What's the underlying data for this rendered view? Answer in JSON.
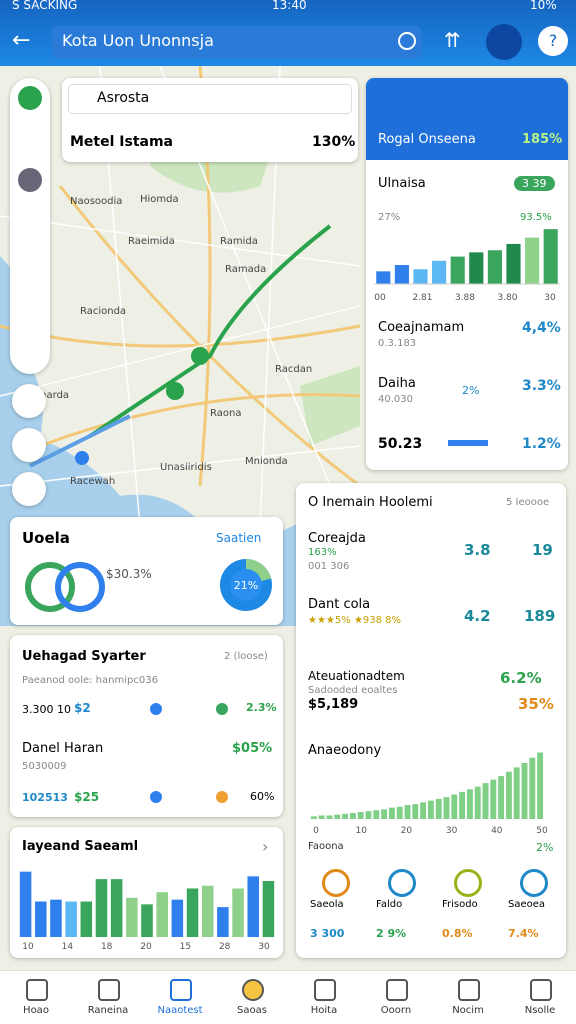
{
  "status": {
    "carrier": "S SACKING",
    "time": "13:40",
    "battery": "10%"
  },
  "header": {
    "search": "Kota Uon Unonnsja"
  },
  "map": {
    "labels": [
      "Naosoodia",
      "Hiomda",
      "Raeimida",
      "Ramida",
      "Ramada",
      "Racionda",
      "Racdan",
      "Dannarda",
      "Raona",
      "Mnionda",
      "Unasiiridis",
      "Racewah"
    ]
  },
  "search_card": {
    "query": "Asrosta",
    "title": "Metel Istama",
    "value": "130%"
  },
  "side_panel": {
    "title": "Rogal Onseena",
    "value": "185%",
    "chart_title": "Ulnaisa",
    "badge": "3 39",
    "low": "27%",
    "high": "93.5%",
    "bars": [
      12,
      18,
      14,
      22,
      26,
      30,
      32,
      38,
      44,
      52
    ],
    "bar_colors": [
      "#2f80ed",
      "#2f80ed",
      "#5cb8f5",
      "#5cb8f5",
      "#3aa55d",
      "#1f8a4c",
      "#3aa55d",
      "#1f8a4c",
      "#8fd18a",
      "#3aa55d"
    ],
    "x_labels": [
      "00",
      "2.81",
      "3.88",
      "3.80",
      "30"
    ],
    "rows": [
      {
        "name": "Coeajnamam",
        "sub": "0.3.183",
        "value": "4,4%"
      },
      {
        "name": "Daiha",
        "sub": "40.030",
        "mid": "2%",
        "value": "3.3%"
      },
      {
        "name": "50.23",
        "value": "1.2%"
      }
    ]
  },
  "card_ratio": {
    "title": "Uoela",
    "link": "Saatien",
    "value": "$30.3%",
    "pie": {
      "value": 21,
      "label": "21%"
    }
  },
  "card_list": {
    "title": "Uehagad Syarter",
    "tag": "2 (loose)",
    "row1": {
      "name": "Paeanod oole: hanmipc036",
      "id": "3.300 10",
      "amount": "$2",
      "value": "2.3%"
    },
    "row2": {
      "name": "Danel Haran",
      "value_top": "$05%",
      "sub": "5030009",
      "id": "102513",
      "amount": "$25",
      "value": "60%"
    }
  },
  "card_bars": {
    "title": "Iayeand Saeaml",
    "values": [
      70,
      38,
      40,
      38,
      38,
      62,
      62,
      42,
      35,
      48,
      40,
      52,
      55,
      32,
      52,
      65,
      60
    ],
    "colors": [
      "#2f80ed",
      "#2f80ed",
      "#2f80ed",
      "#5cb8f5",
      "#3aa55d",
      "#3aa55d",
      "#3aa55d",
      "#8fd18a",
      "#3aa55d",
      "#8fd18a",
      "#2f80ed",
      "#3aa55d",
      "#8fd18a",
      "#2f80ed",
      "#8fd18a",
      "#2f80ed",
      "#3aa55d"
    ],
    "x_labels": [
      "10",
      "14",
      "18",
      "20",
      "15",
      "28",
      "30"
    ]
  },
  "card_stats": {
    "title": "O Inemain Hoolemi",
    "tag": "5 Ieoooe",
    "row1": {
      "name": "Coreajda",
      "pct": "163%",
      "sub": "001 306",
      "a": "3.8",
      "b": "19"
    },
    "row2": {
      "name": "Dant cola",
      "sub": "★★★5% ★938 8%",
      "a": "4.2",
      "b": "189"
    },
    "row3": {
      "name": "Ateuationadtem",
      "sub": "Sadooded eoaltes",
      "amount": "$5,189",
      "a": "6.2%",
      "b": "35%"
    },
    "growth_title": "Anaeodony",
    "growth": [
      3,
      4,
      4,
      5,
      6,
      7,
      8,
      9,
      10,
      11,
      13,
      14,
      16,
      17,
      19,
      21,
      23,
      25,
      28,
      31,
      34,
      37,
      41,
      45,
      49,
      54,
      59,
      64,
      70,
      76
    ],
    "growth_ticks": [
      "0",
      "10",
      "20",
      "30",
      "40",
      "50"
    ],
    "footer": "Faoona",
    "footer_value": "2%",
    "icons": [
      {
        "name": "Saeola",
        "value": "3 300"
      },
      {
        "name": "Faldo",
        "value": "2 9%"
      },
      {
        "name": "Frisodo",
        "value": "0.8%"
      },
      {
        "name": "Saeoea",
        "value": "7.4%"
      }
    ]
  },
  "nav": [
    "Hoao",
    "Raneina",
    "Naaotest",
    "Saoas",
    "Hoita",
    "Ooorn",
    "Nocim",
    "Nsolle"
  ]
}
